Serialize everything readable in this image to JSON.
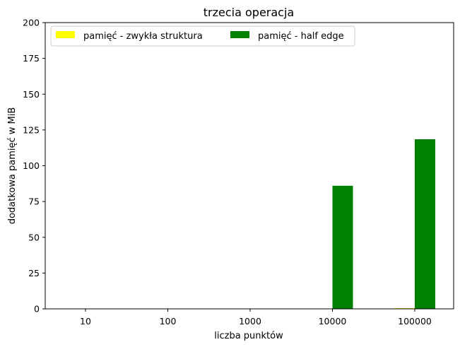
{
  "chart_data": {
    "type": "bar",
    "title": "trzecia operacja",
    "xlabel": "liczba punktów",
    "ylabel": "dodatkowa pamięć w MiB",
    "categories": [
      "10",
      "100",
      "1000",
      "10000",
      "100000"
    ],
    "ylim": [
      0,
      200
    ],
    "yticks": [
      0,
      25,
      50,
      75,
      100,
      125,
      150,
      175,
      200
    ],
    "grid": false,
    "legend_position": "top-left",
    "legend_columns": 2,
    "series": [
      {
        "name": "pamięć - zwykła struktura",
        "color": "#ffff00",
        "values": [
          0,
          0,
          0,
          0,
          0.5
        ]
      },
      {
        "name": "pamięć - half edge",
        "color": "#008000",
        "values": [
          0,
          0,
          0,
          86,
          118.5
        ]
      }
    ]
  }
}
